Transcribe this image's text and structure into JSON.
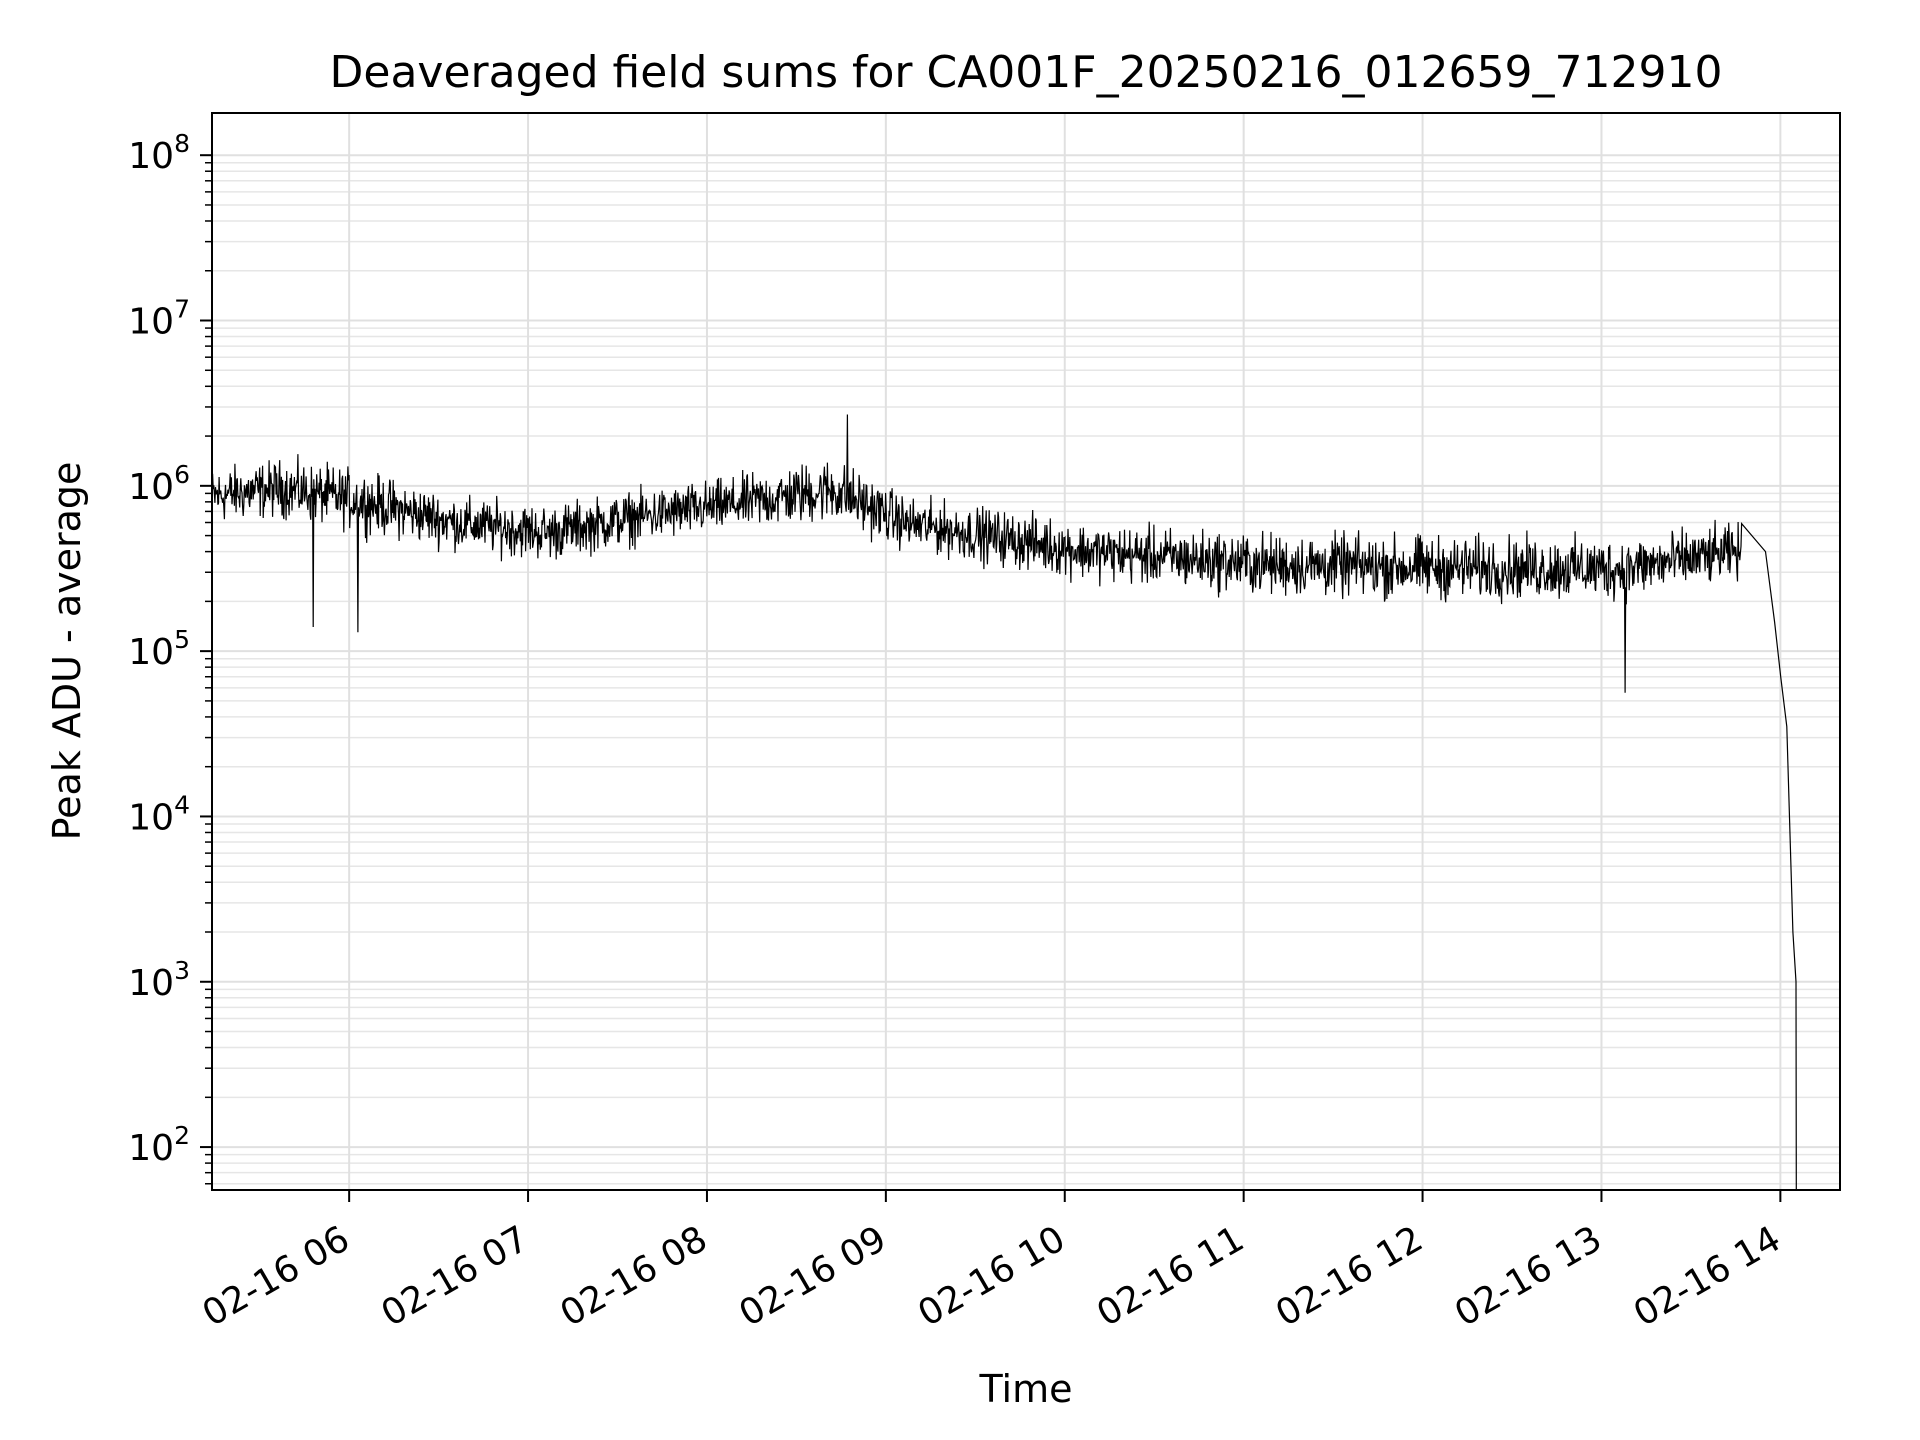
{
  "chart_data": {
    "type": "line",
    "title": "Deaveraged field sums for CA001F_20250216_012659_712910",
    "xlabel": "Time",
    "ylabel": "Peak ADU - average",
    "y_scale": "log",
    "ylim": [
      55,
      180000000
    ],
    "xlim": [
      "02-16 05:07",
      "02-16 14:13"
    ],
    "grid": true,
    "line_color": "#000000",
    "x_ticks": [
      {
        "label": "02-16 06",
        "time": "05:53"
      },
      {
        "label": "02-16 07",
        "time": "06:53"
      },
      {
        "label": "02-16 08",
        "time": "07:53"
      },
      {
        "label": "02-16 09",
        "time": "08:53"
      },
      {
        "label": "02-16 10",
        "time": "09:53"
      },
      {
        "label": "02-16 11",
        "time": "10:53"
      },
      {
        "label": "02-16 12",
        "time": "11:53"
      },
      {
        "label": "02-16 13",
        "time": "12:53"
      },
      {
        "label": "02-16 14",
        "time": "13:53"
      }
    ],
    "y_ticks": [
      {
        "base": "10",
        "exp": "2",
        "value": 100
      },
      {
        "base": "10",
        "exp": "3",
        "value": 1000
      },
      {
        "base": "10",
        "exp": "4",
        "value": 10000
      },
      {
        "base": "10",
        "exp": "5",
        "value": 100000
      },
      {
        "base": "10",
        "exp": "6",
        "value": 1000000
      },
      {
        "base": "10",
        "exp": "7",
        "value": 10000000
      },
      {
        "base": "10",
        "exp": "8",
        "value": 100000000
      }
    ],
    "series_profile": [
      {
        "time": "05:07",
        "low": 500000,
        "high": 1500000
      },
      {
        "time": "05:30",
        "low": 550000,
        "high": 1700000
      },
      {
        "time": "05:55",
        "low": 450000,
        "high": 1500000
      },
      {
        "time": "06:30",
        "low": 350000,
        "high": 1000000
      },
      {
        "time": "07:00",
        "low": 300000,
        "high": 900000
      },
      {
        "time": "07:30",
        "low": 380000,
        "high": 1100000
      },
      {
        "time": "08:00",
        "low": 450000,
        "high": 1300000
      },
      {
        "time": "08:35",
        "low": 500000,
        "high": 1800000
      },
      {
        "time": "09:00",
        "low": 350000,
        "high": 1000000
      },
      {
        "time": "09:30",
        "low": 280000,
        "high": 850000
      },
      {
        "time": "10:00",
        "low": 230000,
        "high": 700000
      },
      {
        "time": "11:00",
        "low": 180000,
        "high": 620000
      },
      {
        "time": "12:00",
        "low": 170000,
        "high": 600000
      },
      {
        "time": "13:00",
        "low": 170000,
        "high": 580000
      },
      {
        "time": "13:40",
        "low": 230000,
        "high": 700000
      }
    ],
    "outliers": [
      {
        "time": "05:41",
        "value": 140000
      },
      {
        "time": "05:56",
        "value": 130000
      },
      {
        "time": "08:40",
        "value": 2700000
      },
      {
        "time": "13:01",
        "value": 56000
      }
    ],
    "tail": [
      {
        "time": "13:48",
        "value": 400000
      },
      {
        "time": "13:51",
        "value": 150000
      },
      {
        "time": "13:53",
        "value": 70000
      },
      {
        "time": "13:55",
        "value": 35000
      },
      {
        "time": "13:57",
        "value": 2000
      },
      {
        "time": "13:58",
        "value": 1000
      },
      {
        "time": "13:58",
        "value": 150
      },
      {
        "time": "13:58",
        "value": 55
      }
    ]
  }
}
